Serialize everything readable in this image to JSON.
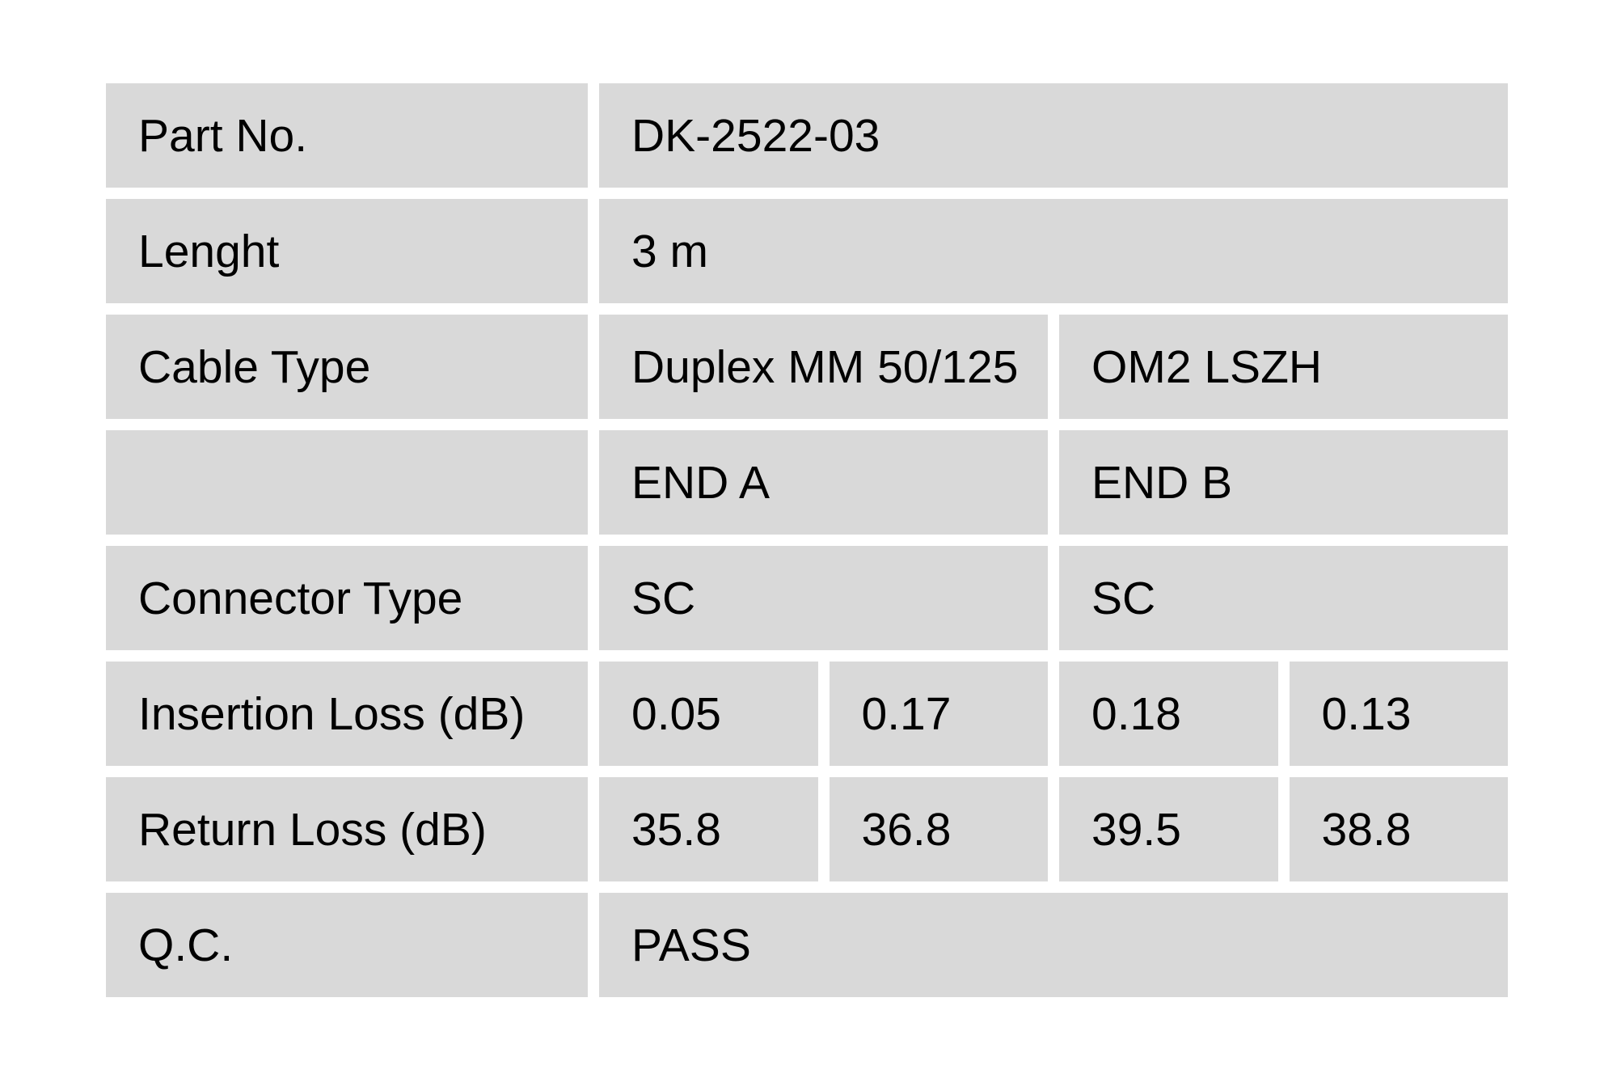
{
  "page": {
    "background_color": "#ffffff"
  },
  "table": {
    "cell_background_color": "#d9d9d9",
    "text_color": "#000000",
    "rows": [
      {
        "label": "Part No.",
        "cells": [
          {
            "text": "DK-2522-03",
            "span": 4
          }
        ]
      },
      {
        "label": "Lenght",
        "cells": [
          {
            "text": "3 m",
            "span": 4
          }
        ]
      },
      {
        "label": "Cable Type",
        "cells": [
          {
            "text": "Duplex MM 50/125",
            "span": 2
          },
          {
            "text": "OM2 LSZH",
            "span": 2
          }
        ]
      },
      {
        "label": "",
        "cells": [
          {
            "text": "END A",
            "span": 2
          },
          {
            "text": "END B",
            "span": 2
          }
        ]
      },
      {
        "label": "Connector Type",
        "cells": [
          {
            "text": "SC",
            "span": 2
          },
          {
            "text": "SC",
            "span": 2
          }
        ]
      },
      {
        "label": "Insertion Loss (dB)",
        "cells": [
          {
            "text": "0.05",
            "span": 1
          },
          {
            "text": "0.17",
            "span": 1
          },
          {
            "text": "0.18",
            "span": 1
          },
          {
            "text": "0.13",
            "span": 1
          }
        ]
      },
      {
        "label": "Return Loss (dB)",
        "cells": [
          {
            "text": "35.8",
            "span": 1
          },
          {
            "text": "36.8",
            "span": 1
          },
          {
            "text": "39.5",
            "span": 1
          },
          {
            "text": "38.8",
            "span": 1
          }
        ]
      },
      {
        "label": "Q.C.",
        "cells": [
          {
            "text": "PASS",
            "span": 4
          }
        ]
      }
    ]
  }
}
